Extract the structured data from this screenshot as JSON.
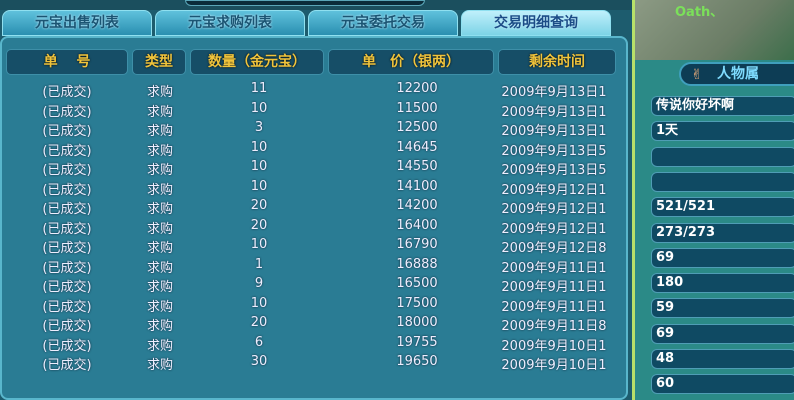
{
  "tabs": [
    "元宝出售列表",
    "元宝求购列表",
    "元宝委托交易",
    "交易明细查询"
  ],
  "active_tab": 3,
  "headers": [
    "单　 号",
    "类型",
    "数量（金元宝）",
    "单　价（银两）",
    "剩余时间"
  ],
  "rows": [
    [
      "(已成交)",
      "求购",
      "11",
      "12200",
      "2009年9月13日1"
    ],
    [
      "(已成交)",
      "求购",
      "10",
      "11500",
      "2009年9月13日1"
    ],
    [
      "(已成交)",
      "求购",
      "3",
      "12500",
      "2009年9月13日1"
    ],
    [
      "(已成交)",
      "求购",
      "10",
      "14645",
      "2009年9月13日5"
    ],
    [
      "(已成交)",
      "求购",
      "10",
      "14550",
      "2009年9月13日5"
    ],
    [
      "(已成交)",
      "求购",
      "10",
      "14100",
      "2009年9月12日1"
    ],
    [
      "(已成交)",
      "求购",
      "20",
      "14200",
      "2009年9月12日1"
    ],
    [
      "(已成交)",
      "求购",
      "20",
      "16400",
      "2009年9月12日1"
    ],
    [
      "(已成交)",
      "求购",
      "10",
      "16790",
      "2009年9月12日8"
    ],
    [
      "(已成交)",
      "求购",
      "1",
      "16888",
      "2009年9月11日1"
    ],
    [
      "(已成交)",
      "求购",
      "9",
      "16500",
      "2009年9月11日1"
    ],
    [
      "(已成交)",
      "求购",
      "10",
      "17500",
      "2009年9月11日1"
    ],
    [
      "(已成交)",
      "求购",
      "20",
      "18000",
      "2009年9月11日8"
    ],
    [
      "(已成交)",
      "求购",
      "6",
      "19755",
      "2009年9月10日1"
    ],
    [
      "(已成交)",
      "求购",
      "30",
      "19650",
      "2009年9月10日1"
    ]
  ],
  "right": {
    "player_name": "Oath、",
    "panel_title": "人物属",
    "fields": [
      "传说你好坏啊",
      "1天",
      "",
      "",
      "521/521",
      "273/273",
      "69",
      "180",
      "59",
      "69",
      "48",
      "60"
    ]
  }
}
